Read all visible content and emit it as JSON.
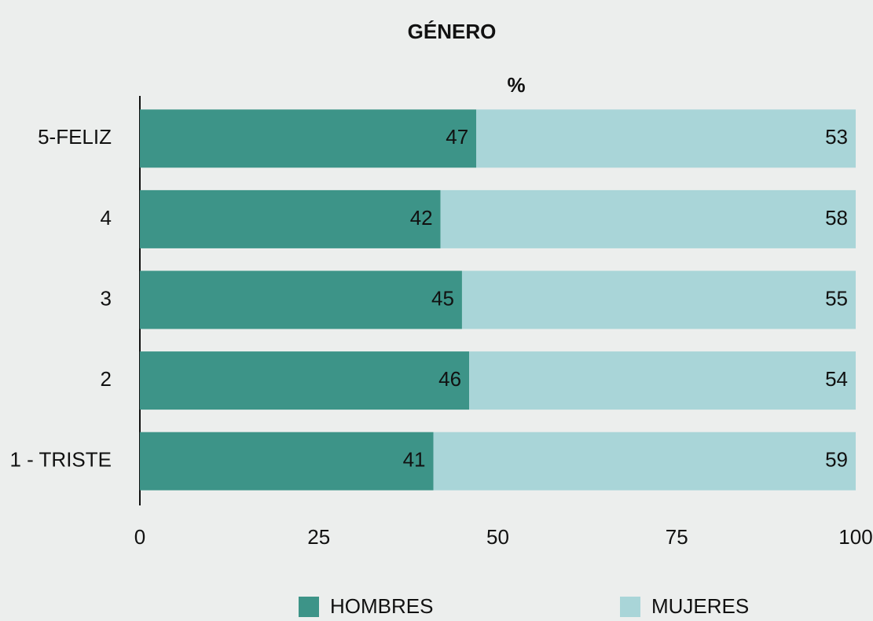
{
  "chart_data": {
    "type": "stacked-barh",
    "title": "GÉNERO",
    "subtitle": "%",
    "categories": [
      "5-FELIZ",
      "4",
      "3",
      "2",
      "1 - TRISTE"
    ],
    "series": [
      {
        "name": "HOMBRES",
        "color": "#3d9488",
        "values": [
          47,
          42,
          45,
          46,
          41
        ]
      },
      {
        "name": "MUJERES",
        "color": "#a9d5d8",
        "values": [
          53,
          58,
          55,
          54,
          59
        ]
      }
    ],
    "xlim": [
      0,
      100
    ],
    "xticks": [
      0,
      25,
      50,
      75,
      100
    ],
    "legend": "bottom"
  }
}
